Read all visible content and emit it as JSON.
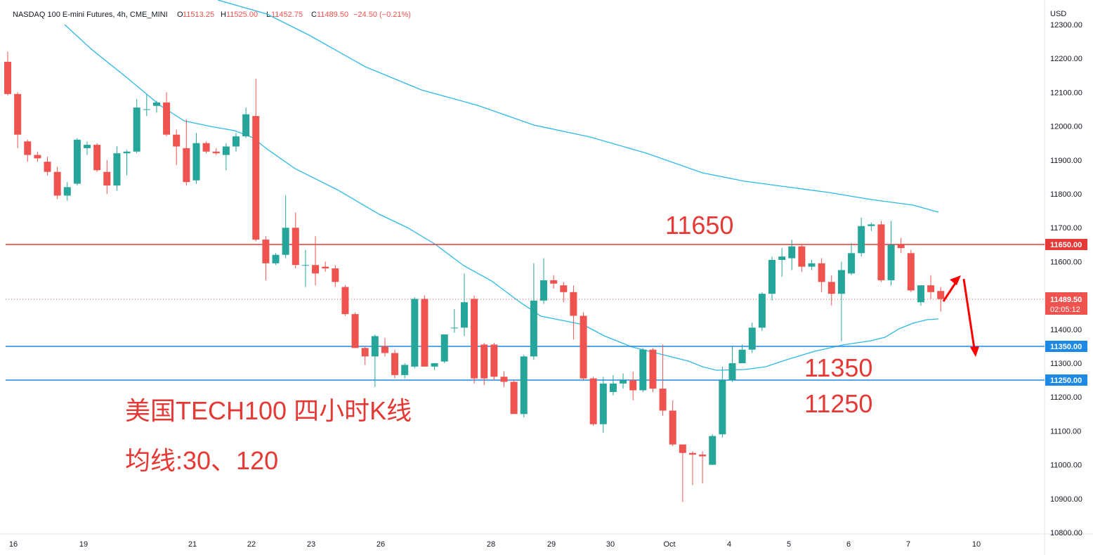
{
  "colors": {
    "up": "#26a69a",
    "down": "#ef5350",
    "ma_line": "#2bb8e6",
    "resistance_line": "#e53935",
    "support_line": "#1e88e5",
    "annotation": "#e53935",
    "axis_text": "#131722",
    "price_tag": "#ef5350"
  },
  "header": {
    "symbol": "NASDAQ 100 E-mini Futures, 4h, CME_MINI",
    "open_label": "O",
    "open": "11513.25",
    "high_label": "H",
    "high": "11525.00",
    "low_label": "L",
    "low": "11452.75",
    "close_label": "C",
    "close": "11489.50",
    "change": "−24.50 (−0.21%)"
  },
  "axis": {
    "currency": "USD",
    "y_ticks": [
      "12300.00",
      "12200.00",
      "12100.00",
      "12000.00",
      "11900.00",
      "11800.00",
      "11700.00",
      "11600.00",
      "11500.00",
      "11400.00",
      "11300.00",
      "11200.00",
      "11100.00",
      "11000.00",
      "10900.00",
      "10800.00"
    ],
    "x_ticks": [
      "16",
      "19",
      "21",
      "22",
      "23",
      "26",
      "28",
      "29",
      "30",
      "Oct",
      "4",
      "5",
      "6",
      "7",
      "10"
    ]
  },
  "price_tags": {
    "resistance": "11650.00",
    "current": "11489.50",
    "countdown": "02:05:12",
    "support1": "11350.00",
    "support2": "11250.00"
  },
  "annotations": {
    "r_label": "11650",
    "s1_label": "11350",
    "s2_label": "11250",
    "title": "美国TECH100 四小时K线",
    "ma_note": "均线:30、120"
  },
  "chart_data": {
    "type": "candlestick",
    "timeframe": "4h",
    "ylim": [
      10800,
      12300
    ],
    "x_tick_labels": [
      "16",
      "19",
      "21",
      "22",
      "23",
      "26",
      "28",
      "29",
      "30",
      "Oct",
      "4",
      "5",
      "6",
      "7",
      "10"
    ],
    "candles": [
      {
        "o": 12190,
        "h": 12220,
        "l": 12090,
        "c": 12095
      },
      {
        "o": 12095,
        "h": 12100,
        "l": 11935,
        "c": 11975
      },
      {
        "o": 11955,
        "h": 11960,
        "l": 11895,
        "c": 11915
      },
      {
        "o": 11915,
        "h": 11925,
        "l": 11895,
        "c": 11905
      },
      {
        "o": 11895,
        "h": 11910,
        "l": 11855,
        "c": 11865
      },
      {
        "o": 11865,
        "h": 11880,
        "l": 11785,
        "c": 11795
      },
      {
        "o": 11795,
        "h": 11835,
        "l": 11780,
        "c": 11820
      },
      {
        "o": 11830,
        "h": 11965,
        "l": 11825,
        "c": 11960
      },
      {
        "o": 11935,
        "h": 11955,
        "l": 11915,
        "c": 11945
      },
      {
        "o": 11945,
        "h": 11950,
        "l": 11865,
        "c": 11870
      },
      {
        "o": 11865,
        "h": 11900,
        "l": 11800,
        "c": 11825
      },
      {
        "o": 11825,
        "h": 11940,
        "l": 11810,
        "c": 11920
      },
      {
        "o": 11920,
        "h": 11930,
        "l": 11855,
        "c": 11925
      },
      {
        "o": 11925,
        "h": 12080,
        "l": 11920,
        "c": 12055
      },
      {
        "o": 12050,
        "h": 12095,
        "l": 12030,
        "c": 12050
      },
      {
        "o": 12060,
        "h": 12075,
        "l": 12040,
        "c": 12070
      },
      {
        "o": 12070,
        "h": 12100,
        "l": 11970,
        "c": 11975
      },
      {
        "o": 11975,
        "h": 11990,
        "l": 11885,
        "c": 11940
      },
      {
        "o": 11935,
        "h": 12020,
        "l": 11825,
        "c": 11835
      },
      {
        "o": 11840,
        "h": 11980,
        "l": 11830,
        "c": 11950
      },
      {
        "o": 11950,
        "h": 11955,
        "l": 11920,
        "c": 11925
      },
      {
        "o": 11925,
        "h": 11935,
        "l": 11915,
        "c": 11920
      },
      {
        "o": 11915,
        "h": 11950,
        "l": 11870,
        "c": 11940
      },
      {
        "o": 11940,
        "h": 11980,
        "l": 11925,
        "c": 11970
      },
      {
        "o": 11970,
        "h": 12055,
        "l": 11965,
        "c": 12035
      },
      {
        "o": 12030,
        "h": 12140,
        "l": 11660,
        "c": 11665
      },
      {
        "o": 11665,
        "h": 11675,
        "l": 11545,
        "c": 11595
      },
      {
        "o": 11595,
        "h": 11625,
        "l": 11590,
        "c": 11620
      },
      {
        "o": 11620,
        "h": 11795,
        "l": 11610,
        "c": 11700
      },
      {
        "o": 11700,
        "h": 11745,
        "l": 11580,
        "c": 11590
      },
      {
        "o": 11590,
        "h": 11635,
        "l": 11525,
        "c": 11590
      },
      {
        "o": 11590,
        "h": 11675,
        "l": 11530,
        "c": 11565
      },
      {
        "o": 11585,
        "h": 11600,
        "l": 11570,
        "c": 11580
      },
      {
        "o": 11580,
        "h": 11590,
        "l": 11525,
        "c": 11540
      },
      {
        "o": 11525,
        "h": 11530,
        "l": 11440,
        "c": 11445
      },
      {
        "o": 11445,
        "h": 11450,
        "l": 11345,
        "c": 11345
      },
      {
        "o": 11345,
        "h": 11350,
        "l": 11295,
        "c": 11320
      },
      {
        "o": 11320,
        "h": 11385,
        "l": 11230,
        "c": 11380
      },
      {
        "o": 11350,
        "h": 11375,
        "l": 11320,
        "c": 11330
      },
      {
        "o": 11330,
        "h": 11340,
        "l": 11255,
        "c": 11265
      },
      {
        "o": 11265,
        "h": 11300,
        "l": 11255,
        "c": 11295
      },
      {
        "o": 11290,
        "h": 11495,
        "l": 11285,
        "c": 11490
      },
      {
        "o": 11490,
        "h": 11500,
        "l": 11290,
        "c": 11290
      },
      {
        "o": 11290,
        "h": 11300,
        "l": 11280,
        "c": 11300
      },
      {
        "o": 11305,
        "h": 11385,
        "l": 11300,
        "c": 11385
      },
      {
        "o": 11405,
        "h": 11460,
        "l": 11390,
        "c": 11405
      },
      {
        "o": 11405,
        "h": 11565,
        "l": 11380,
        "c": 11480
      },
      {
        "o": 11490,
        "h": 11500,
        "l": 11240,
        "c": 11255
      },
      {
        "o": 11355,
        "h": 11360,
        "l": 11235,
        "c": 11255
      },
      {
        "o": 11355,
        "h": 11360,
        "l": 11250,
        "c": 11260
      },
      {
        "o": 11260,
        "h": 11275,
        "l": 11230,
        "c": 11245
      },
      {
        "o": 11245,
        "h": 11250,
        "l": 11150,
        "c": 11150
      },
      {
        "o": 11150,
        "h": 11325,
        "l": 11140,
        "c": 11320
      },
      {
        "o": 11320,
        "h": 11595,
        "l": 11310,
        "c": 11485
      },
      {
        "o": 11485,
        "h": 11610,
        "l": 11475,
        "c": 11545
      },
      {
        "o": 11545,
        "h": 11560,
        "l": 11520,
        "c": 11535
      },
      {
        "o": 11530,
        "h": 11540,
        "l": 11480,
        "c": 11510
      },
      {
        "o": 11510,
        "h": 11530,
        "l": 11370,
        "c": 11440
      },
      {
        "o": 11440,
        "h": 11450,
        "l": 11250,
        "c": 11255
      },
      {
        "o": 11255,
        "h": 11260,
        "l": 11115,
        "c": 11120
      },
      {
        "o": 11120,
        "h": 11260,
        "l": 11095,
        "c": 11240
      },
      {
        "o": 11215,
        "h": 11265,
        "l": 11205,
        "c": 11240
      },
      {
        "o": 11240,
        "h": 11270,
        "l": 11225,
        "c": 11250
      },
      {
        "o": 11250,
        "h": 11275,
        "l": 11190,
        "c": 11220
      },
      {
        "o": 11220,
        "h": 11345,
        "l": 11215,
        "c": 11340
      },
      {
        "o": 11340,
        "h": 11345,
        "l": 11215,
        "c": 11225
      },
      {
        "o": 11225,
        "h": 11355,
        "l": 11145,
        "c": 11160
      },
      {
        "o": 11160,
        "h": 11190,
        "l": 11055,
        "c": 11060
      },
      {
        "o": 11060,
        "h": 11050,
        "l": 10890,
        "c": 11035
      },
      {
        "o": 11035,
        "h": 11040,
        "l": 10940,
        "c": 11030
      },
      {
        "o": 11030,
        "h": 11040,
        "l": 10945,
        "c": 11025
      },
      {
        "o": 11000,
        "h": 11090,
        "l": 11000,
        "c": 11085
      },
      {
        "o": 11090,
        "h": 11290,
        "l": 11080,
        "c": 11250
      },
      {
        "o": 11250,
        "h": 11350,
        "l": 11245,
        "c": 11300
      },
      {
        "o": 11300,
        "h": 11355,
        "l": 11300,
        "c": 11340
      },
      {
        "o": 11340,
        "h": 11420,
        "l": 11330,
        "c": 11405
      },
      {
        "o": 11405,
        "h": 11510,
        "l": 11395,
        "c": 11505
      },
      {
        "o": 11505,
        "h": 11615,
        "l": 11485,
        "c": 11605
      },
      {
        "o": 11605,
        "h": 11640,
        "l": 11555,
        "c": 11615
      },
      {
        "o": 11610,
        "h": 11665,
        "l": 11575,
        "c": 11645
      },
      {
        "o": 11645,
        "h": 11650,
        "l": 11570,
        "c": 11585
      },
      {
        "o": 11585,
        "h": 11605,
        "l": 11575,
        "c": 11595
      },
      {
        "o": 11595,
        "h": 11610,
        "l": 11510,
        "c": 11540
      },
      {
        "o": 11540,
        "h": 11560,
        "l": 11470,
        "c": 11505
      },
      {
        "o": 11505,
        "h": 11600,
        "l": 11365,
        "c": 11575
      },
      {
        "o": 11565,
        "h": 11655,
        "l": 11560,
        "c": 11625
      },
      {
        "o": 11625,
        "h": 11730,
        "l": 11615,
        "c": 11705
      },
      {
        "o": 11705,
        "h": 11715,
        "l": 11690,
        "c": 11710
      },
      {
        "o": 11710,
        "h": 11720,
        "l": 11540,
        "c": 11545
      },
      {
        "o": 11545,
        "h": 11720,
        "l": 11530,
        "c": 11650
      },
      {
        "o": 11650,
        "h": 11670,
        "l": 11625,
        "c": 11640
      },
      {
        "o": 11625,
        "h": 11635,
        "l": 11510,
        "c": 11515
      },
      {
        "o": 11480,
        "h": 11530,
        "l": 11470,
        "c": 11530
      },
      {
        "o": 11530,
        "h": 11560,
        "l": 11490,
        "c": 11510
      },
      {
        "o": 11513.25,
        "h": 11525.0,
        "l": 11452.75,
        "c": 11489.5
      }
    ],
    "moving_averages": [
      {
        "name": "MA30",
        "period": 30
      },
      {
        "name": "MA120",
        "period": 120
      }
    ],
    "levels": {
      "resistance": 11650,
      "support": [
        11350,
        11250
      ]
    },
    "current_price": 11489.5
  }
}
